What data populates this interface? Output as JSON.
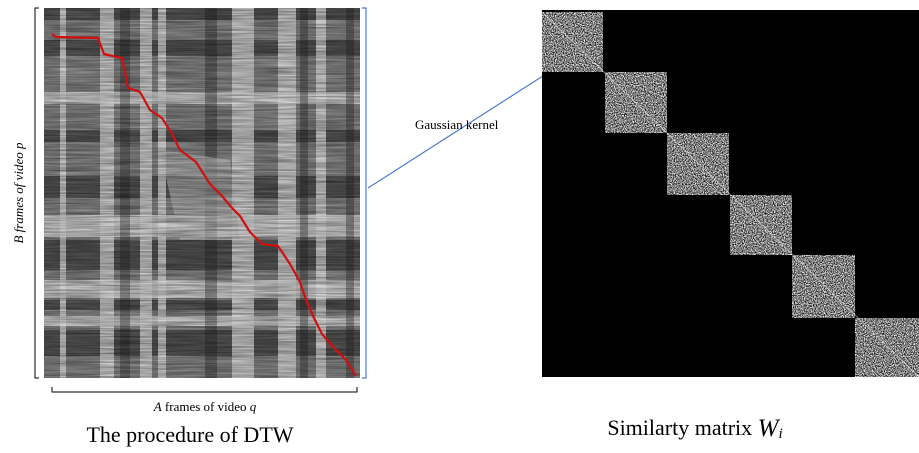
{
  "left_panel": {
    "y_axis_label": {
      "var": "B",
      "text": "frames of video",
      "var2": "p"
    },
    "x_axis_label": {
      "var": "A",
      "text": "frames of video",
      "var2": "q"
    },
    "caption": "The procedure of DTW"
  },
  "annotation": "Gaussian kernel",
  "right_panel": {
    "caption": "Similarty matrix",
    "symbol": "W",
    "subscript": "i"
  }
}
